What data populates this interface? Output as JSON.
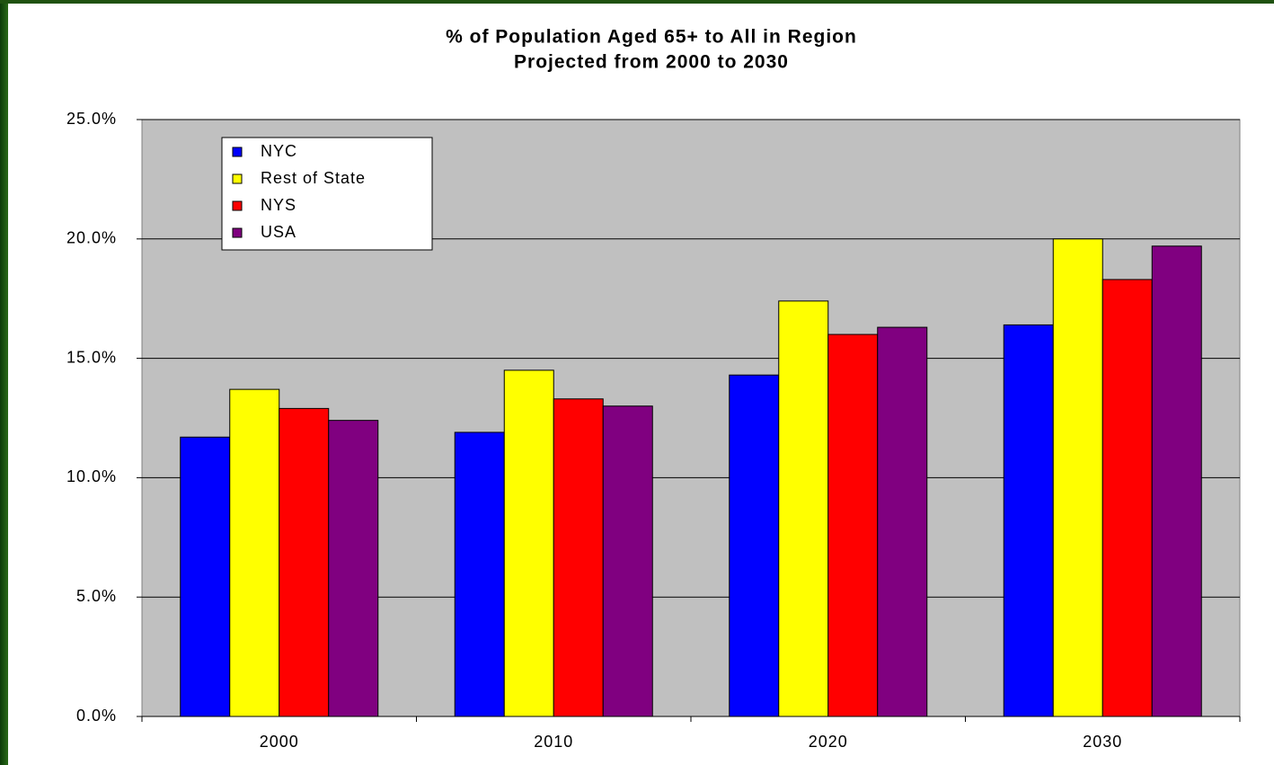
{
  "chart_data": {
    "type": "bar",
    "title": "% of Population Aged 65+ to All in Region",
    "subtitle": "Projected from 2000 to 2030",
    "categories": [
      "2000",
      "2010",
      "2020",
      "2030"
    ],
    "series": [
      {
        "name": "NYC",
        "color": "#0000ff",
        "values": [
          11.7,
          11.9,
          14.3,
          16.4
        ]
      },
      {
        "name": "Rest of State",
        "color": "#ffff00",
        "values": [
          13.7,
          14.5,
          17.4,
          20.0
        ]
      },
      {
        "name": "NYS",
        "color": "#ff0000",
        "values": [
          12.9,
          13.3,
          16.0,
          18.3
        ]
      },
      {
        "name": "USA",
        "color": "#800080",
        "values": [
          12.4,
          13.0,
          16.3,
          19.7
        ]
      }
    ],
    "ylim": [
      0,
      25
    ],
    "yticks": [
      {
        "value": 0,
        "label": "0.0%"
      },
      {
        "value": 5,
        "label": "5.0%"
      },
      {
        "value": 10,
        "label": "10.0%"
      },
      {
        "value": 15,
        "label": "15.0%"
      },
      {
        "value": 20,
        "label": "20.0%"
      },
      {
        "value": 25,
        "label": "25.0%"
      }
    ],
    "grid": true,
    "legend": "upper left"
  }
}
